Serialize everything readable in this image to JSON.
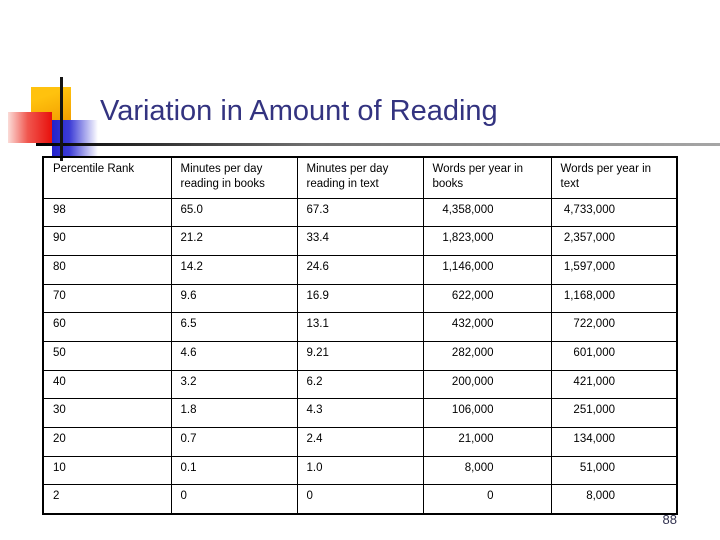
{
  "slide": {
    "title": "Variation in Amount of Reading",
    "page_number": "88"
  },
  "decor": {
    "colors": {
      "title": "#333380",
      "accent_yellow": "#FFC20E",
      "accent_red": "#E8100C",
      "accent_blue": "#2222CC",
      "table_border": "#000000"
    }
  },
  "table": {
    "columns": [
      "Percentile Rank",
      "Minutes per day reading in books",
      "Minutes per day reading in text",
      "Words per year in books",
      "Words per year in text"
    ],
    "rows": [
      [
        "98",
        "65.0",
        "67.3",
        "4,358,000",
        "4,733,000"
      ],
      [
        "90",
        "21.2",
        "33.4",
        "1,823,000",
        "2,357,000"
      ],
      [
        "80",
        "14.2",
        "24.6",
        "1,146,000",
        "1,597,000"
      ],
      [
        "70",
        "9.6",
        "16.9",
        "622,000",
        "1,168,000"
      ],
      [
        "60",
        "6.5",
        "13.1",
        "432,000",
        "722,000"
      ],
      [
        "50",
        "4.6",
        "9.21",
        "282,000",
        "601,000"
      ],
      [
        "40",
        "3.2",
        "6.2",
        "200,000",
        "421,000"
      ],
      [
        "30",
        "1.8",
        "4.3",
        "106,000",
        "251,000"
      ],
      [
        "20",
        "0.7",
        "2.4",
        "21,000",
        "134,000"
      ],
      [
        "10",
        "0.1",
        "1.0",
        "8,000",
        "51,000"
      ],
      [
        "2",
        "0",
        "0",
        "0",
        "8,000"
      ]
    ]
  }
}
